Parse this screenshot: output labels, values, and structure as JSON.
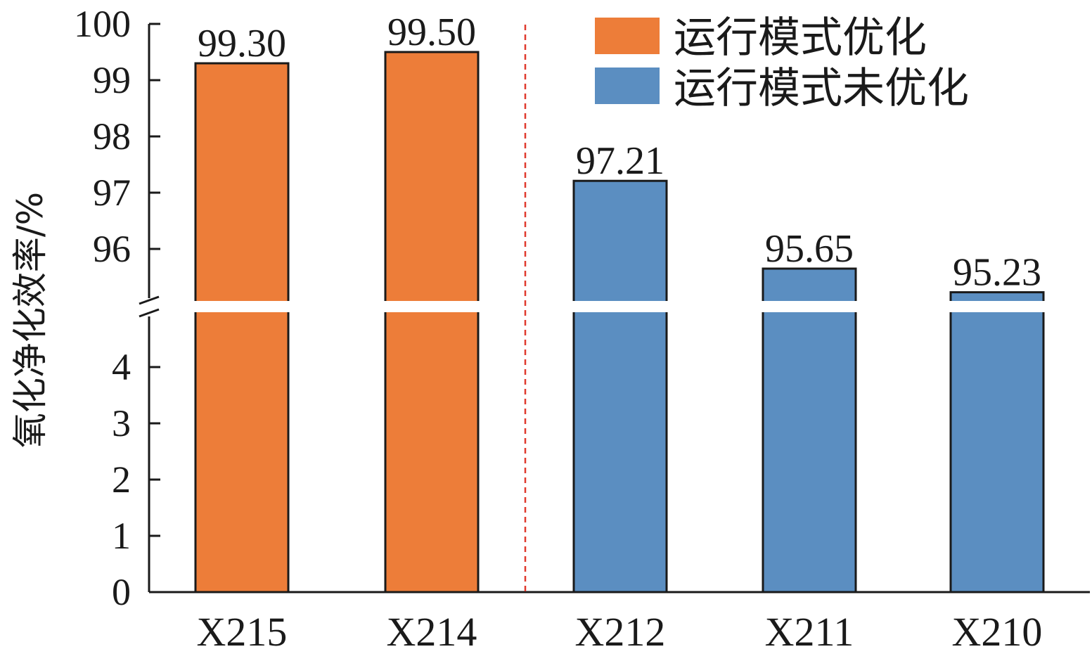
{
  "chart_data": {
    "type": "bar",
    "categories": [
      "X215",
      "X214",
      "X212",
      "X211",
      "X210"
    ],
    "values": [
      99.3,
      99.5,
      97.21,
      95.65,
      95.23
    ],
    "value_labels": [
      "99.30",
      "99.50",
      "97.21",
      "95.65",
      "95.23"
    ],
    "groups": [
      0,
      0,
      1,
      1,
      1
    ],
    "series": [
      {
        "name": "运行模式优化",
        "color": "#ED7D39"
      },
      {
        "name": "运行模式未优化",
        "color": "#5B8EC1"
      }
    ],
    "title": "",
    "xlabel": "",
    "ylabel": "氧化净化效率/%",
    "broken_axis": true,
    "y_lower_range": [
      0,
      5
    ],
    "y_upper_range": [
      95,
      100
    ],
    "y_lower_ticks": [
      "0",
      "1",
      "2",
      "3",
      "4"
    ],
    "y_upper_ticks": [
      "96",
      "97",
      "98",
      "99",
      "100"
    ],
    "divider_color": "#E03A2E",
    "legend_position": "top-right",
    "grid": false
  }
}
